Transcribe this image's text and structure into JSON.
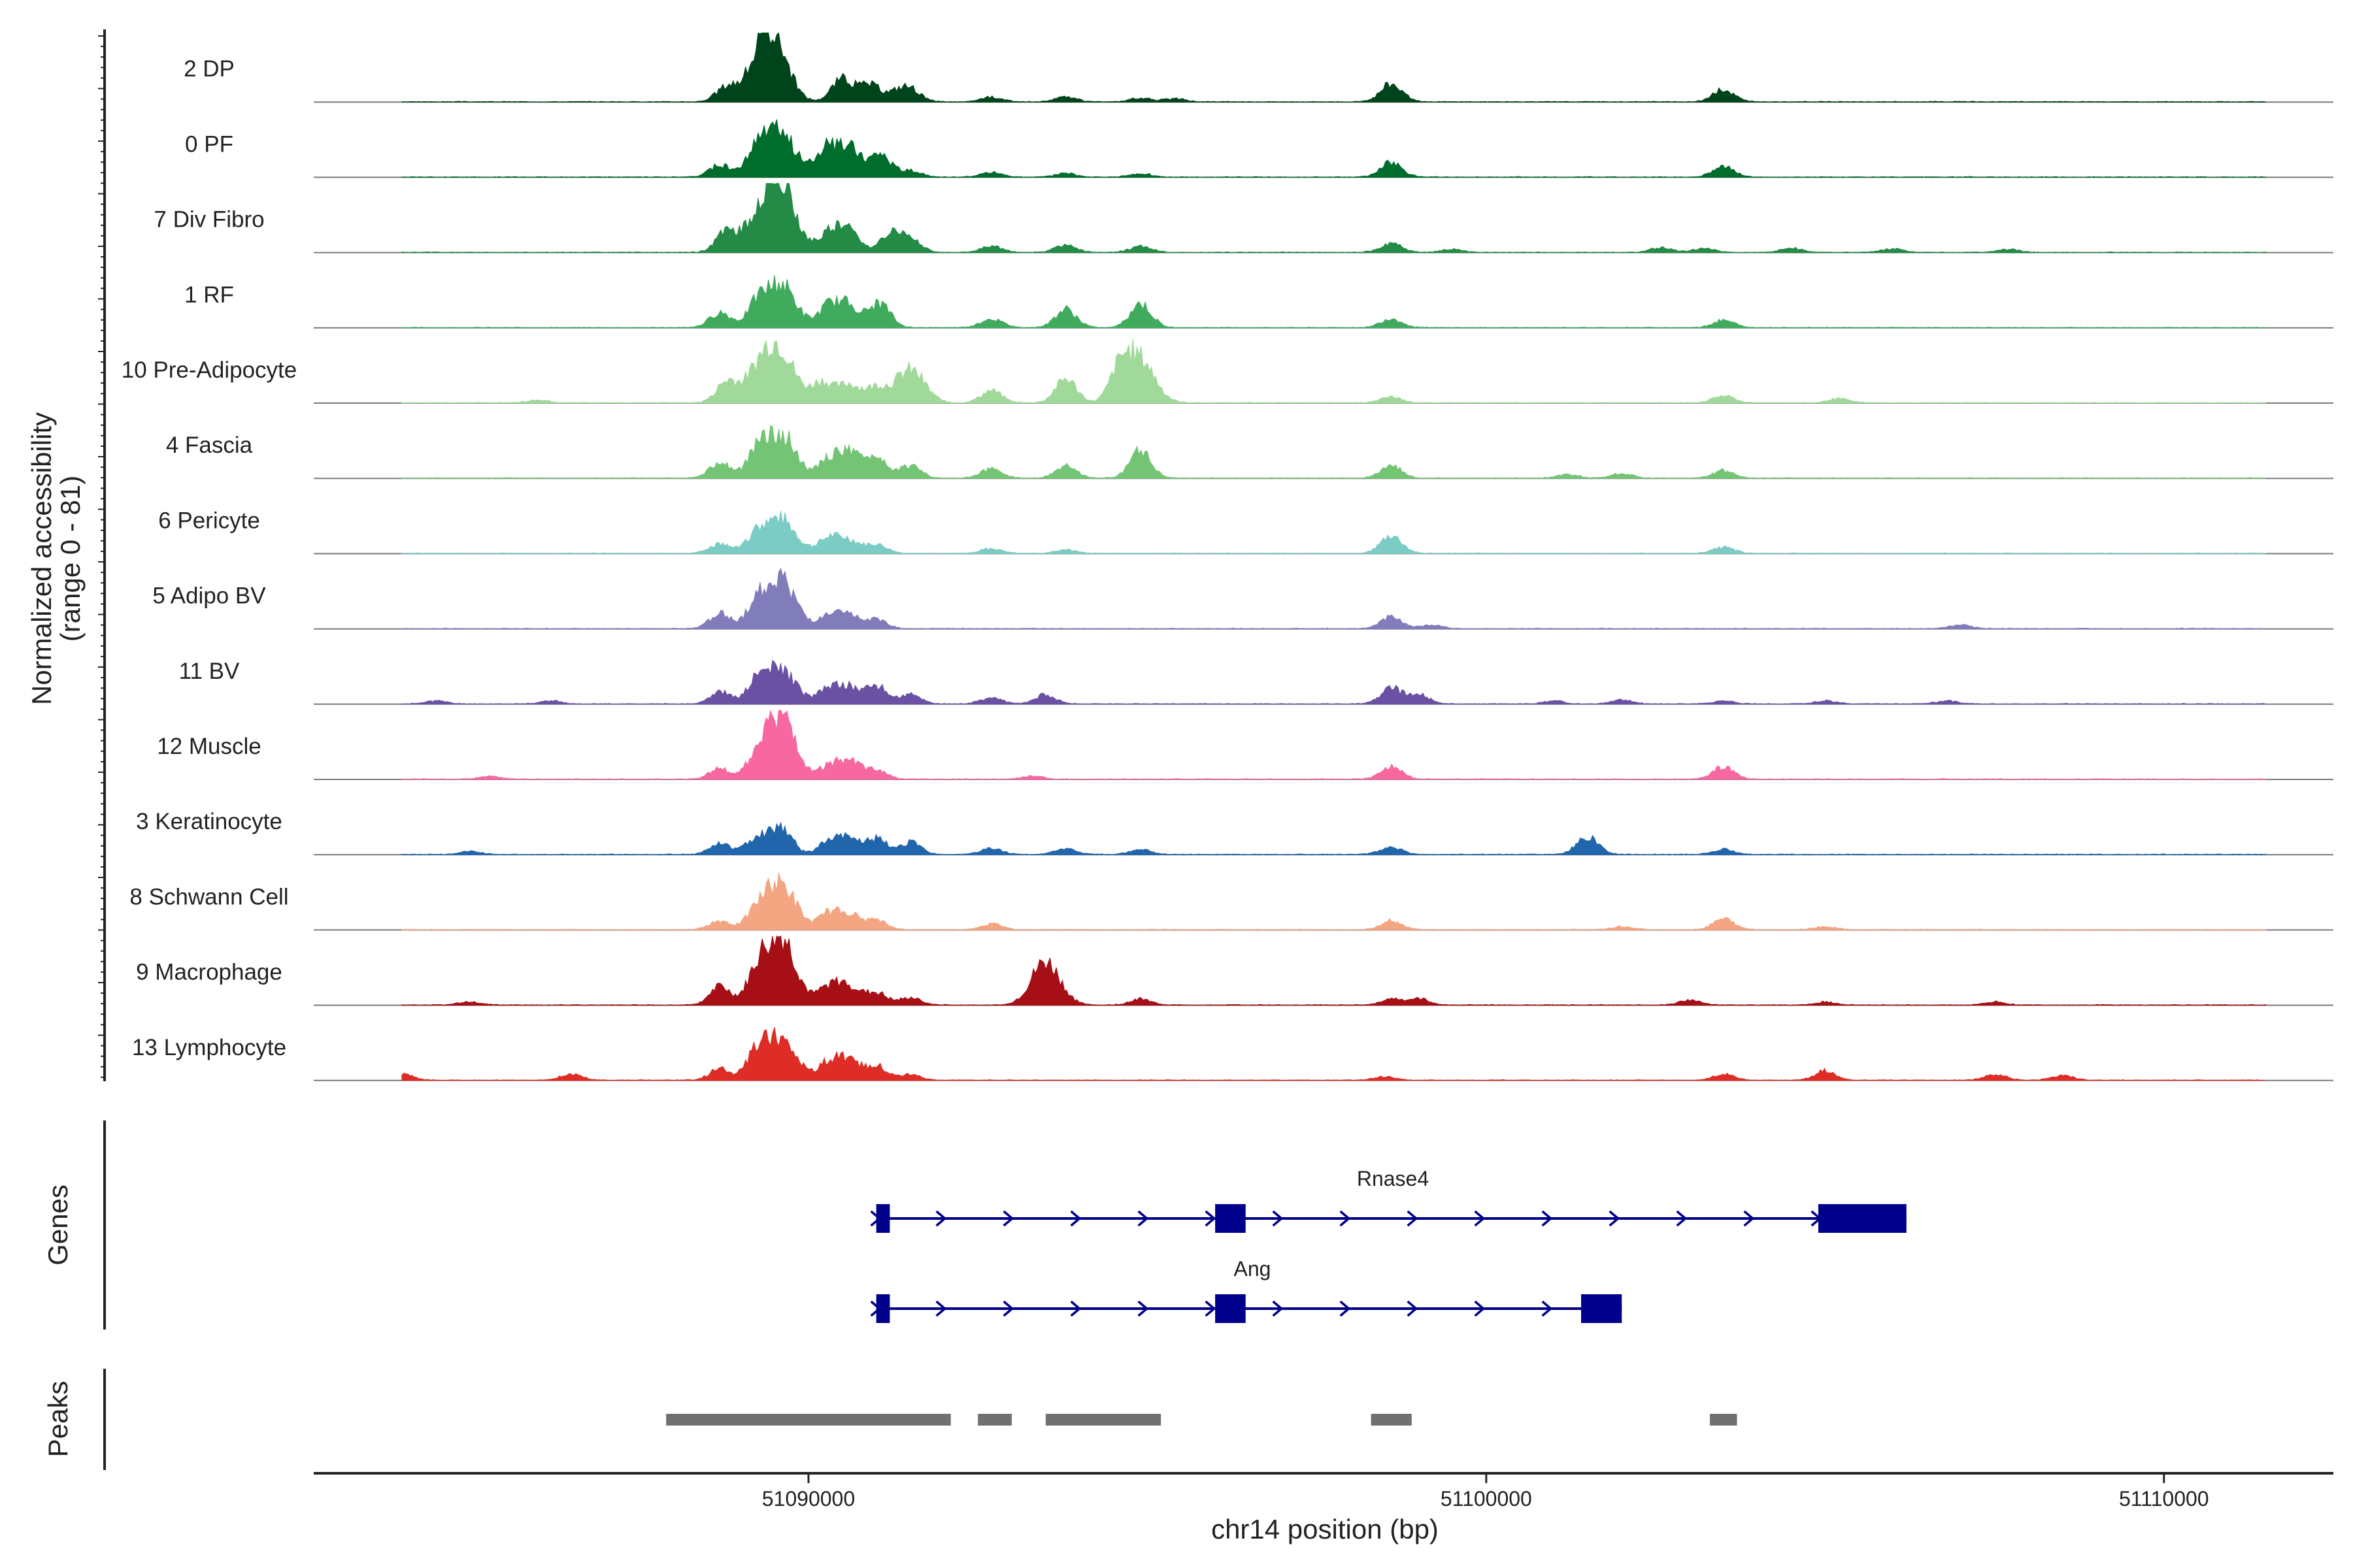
{
  "chart_data": {
    "type": "area",
    "title": "",
    "ylabel": "Normalized accessibility",
    "ylabel_range": "(range 0 - 81)",
    "ylim": [
      0,
      81
    ],
    "xlabel": "chr14 position (bp)",
    "chromosome": "chr14",
    "xlim": [
      51082700,
      51112500
    ],
    "x_ticks": [
      51090000,
      51100000,
      51110000
    ],
    "x_tick_labels": [
      "51090000",
      "51100000",
      "51110000"
    ],
    "panels": [
      "Genes",
      "Peaks"
    ],
    "series": [
      {
        "name": "2 DP",
        "color": "#00441b",
        "peaks": [
          [
            51089500,
            0.85
          ],
          [
            51089300,
            0.55
          ],
          [
            51088800,
            0.25
          ],
          [
            51090500,
            0.38
          ],
          [
            51090900,
            0.28
          ],
          [
            51091500,
            0.2
          ],
          [
            51092700,
            0.08
          ],
          [
            51093800,
            0.08
          ],
          [
            51094900,
            0.06
          ],
          [
            51095400,
            0.05
          ],
          [
            51098600,
            0.3
          ],
          [
            51103500,
            0.2
          ],
          [
            51091300,
            0.12
          ]
        ]
      },
      {
        "name": "0 PF",
        "color": "#006d2c",
        "peaks": [
          [
            51089600,
            0.72
          ],
          [
            51089250,
            0.45
          ],
          [
            51088700,
            0.2
          ],
          [
            51090250,
            0.48
          ],
          [
            51090600,
            0.5
          ],
          [
            51091050,
            0.4
          ],
          [
            51091500,
            0.1
          ],
          [
            51092700,
            0.08
          ],
          [
            51093800,
            0.06
          ],
          [
            51094900,
            0.06
          ],
          [
            51098600,
            0.25
          ],
          [
            51103500,
            0.18
          ]
        ]
      },
      {
        "name": "7 Div Fibro",
        "color": "#238b45",
        "peaks": [
          [
            51089600,
            1.0
          ],
          [
            51089300,
            0.55
          ],
          [
            51088800,
            0.35
          ],
          [
            51090300,
            0.35
          ],
          [
            51090600,
            0.35
          ],
          [
            51091200,
            0.3
          ],
          [
            51091500,
            0.22
          ],
          [
            51092700,
            0.1
          ],
          [
            51093800,
            0.12
          ],
          [
            51094900,
            0.1
          ],
          [
            51098600,
            0.15
          ],
          [
            51099500,
            0.05
          ],
          [
            51102600,
            0.08
          ],
          [
            51103200,
            0.06
          ],
          [
            51104500,
            0.07
          ],
          [
            51106000,
            0.06
          ],
          [
            51107700,
            0.05
          ]
        ]
      },
      {
        "name": "1 RF",
        "color": "#41ab5d",
        "peaks": [
          [
            51089600,
            0.7
          ],
          [
            51089250,
            0.35
          ],
          [
            51088700,
            0.25
          ],
          [
            51090300,
            0.35
          ],
          [
            51090600,
            0.35
          ],
          [
            51091050,
            0.4
          ],
          [
            51092700,
            0.15
          ],
          [
            51093800,
            0.3
          ],
          [
            51094900,
            0.4
          ],
          [
            51098600,
            0.15
          ],
          [
            51103500,
            0.12
          ]
        ]
      },
      {
        "name": "10 Pre-Adipocyte",
        "color": "#a1d99b",
        "peaks": [
          [
            51089600,
            0.75
          ],
          [
            51089300,
            0.55
          ],
          [
            51088800,
            0.35
          ],
          [
            51090200,
            0.35
          ],
          [
            51090600,
            0.3
          ],
          [
            51091000,
            0.25
          ],
          [
            51091500,
            0.55
          ],
          [
            51092700,
            0.2
          ],
          [
            51093800,
            0.4
          ],
          [
            51094900,
            0.7
          ],
          [
            51094600,
            0.5
          ],
          [
            51083500,
            0.12
          ],
          [
            51086000,
            0.05
          ],
          [
            51098600,
            0.1
          ],
          [
            51103500,
            0.12
          ],
          [
            51105200,
            0.07
          ]
        ]
      },
      {
        "name": "4 Fascia",
        "color": "#74c476",
        "peaks": [
          [
            51089600,
            0.72
          ],
          [
            51089250,
            0.4
          ],
          [
            51088700,
            0.25
          ],
          [
            51090300,
            0.3
          ],
          [
            51090600,
            0.4
          ],
          [
            51091000,
            0.35
          ],
          [
            51091500,
            0.2
          ],
          [
            51092700,
            0.15
          ],
          [
            51093800,
            0.2
          ],
          [
            51094900,
            0.45
          ],
          [
            51098600,
            0.2
          ],
          [
            51103500,
            0.12
          ],
          [
            51102000,
            0.08
          ],
          [
            51101200,
            0.06
          ]
        ]
      },
      {
        "name": "6 Pericyte",
        "color": "#7bccc4",
        "peaks": [
          [
            51089600,
            0.55
          ],
          [
            51089250,
            0.3
          ],
          [
            51088700,
            0.15
          ],
          [
            51090300,
            0.25
          ],
          [
            51090600,
            0.2
          ],
          [
            51091000,
            0.15
          ],
          [
            51092700,
            0.08
          ],
          [
            51093800,
            0.06
          ],
          [
            51098600,
            0.3
          ],
          [
            51103500,
            0.1
          ]
        ]
      },
      {
        "name": "5 Adipo BV",
        "color": "#807dba",
        "peaks": [
          [
            51089600,
            0.8
          ],
          [
            51089250,
            0.4
          ],
          [
            51088700,
            0.25
          ],
          [
            51090300,
            0.2
          ],
          [
            51090600,
            0.2
          ],
          [
            51091000,
            0.15
          ],
          [
            51098600,
            0.2
          ],
          [
            51099200,
            0.06
          ],
          [
            51107000,
            0.06
          ]
        ]
      },
      {
        "name": "11 BV",
        "color": "#6a51a3",
        "peaks": [
          [
            51089600,
            0.55
          ],
          [
            51089250,
            0.35
          ],
          [
            51088700,
            0.2
          ],
          [
            51090300,
            0.25
          ],
          [
            51090600,
            0.25
          ],
          [
            51091000,
            0.3
          ],
          [
            51091500,
            0.15
          ],
          [
            51092700,
            0.1
          ],
          [
            51093500,
            0.15
          ],
          [
            51098600,
            0.25
          ],
          [
            51099000,
            0.15
          ],
          [
            51101000,
            0.05
          ],
          [
            51102000,
            0.06
          ],
          [
            51103500,
            0.05
          ],
          [
            51105000,
            0.05
          ],
          [
            51106800,
            0.05
          ],
          [
            51084500,
            0.05
          ],
          [
            51086200,
            0.05
          ]
        ]
      },
      {
        "name": "12 Muscle",
        "color": "#f768a1",
        "peaks": [
          [
            51089600,
            1.0
          ],
          [
            51089250,
            0.35
          ],
          [
            51088700,
            0.18
          ],
          [
            51090300,
            0.2
          ],
          [
            51090600,
            0.3
          ],
          [
            51091000,
            0.15
          ],
          [
            51098600,
            0.2
          ],
          [
            51103500,
            0.2
          ],
          [
            51083500,
            0.06
          ],
          [
            51085300,
            0.05
          ],
          [
            51093300,
            0.05
          ]
        ]
      },
      {
        "name": "3 Keratinocyte",
        "color": "#2166ac",
        "peaks": [
          [
            51089600,
            0.45
          ],
          [
            51089250,
            0.3
          ],
          [
            51088700,
            0.18
          ],
          [
            51090300,
            0.2
          ],
          [
            51090600,
            0.25
          ],
          [
            51091000,
            0.25
          ],
          [
            51091500,
            0.2
          ],
          [
            51092700,
            0.1
          ],
          [
            51093800,
            0.1
          ],
          [
            51094900,
            0.08
          ],
          [
            51098600,
            0.12
          ],
          [
            51101500,
            0.3
          ],
          [
            51103500,
            0.08
          ],
          [
            51085000,
            0.05
          ]
        ]
      },
      {
        "name": "8 Schwann Cell",
        "color": "#f4a582",
        "peaks": [
          [
            51089600,
            0.75
          ],
          [
            51089250,
            0.3
          ],
          [
            51088700,
            0.15
          ],
          [
            51090300,
            0.25
          ],
          [
            51090600,
            0.25
          ],
          [
            51091000,
            0.15
          ],
          [
            51092700,
            0.1
          ],
          [
            51098600,
            0.15
          ],
          [
            51103500,
            0.18
          ],
          [
            51102000,
            0.05
          ],
          [
            51105000,
            0.05
          ]
        ]
      },
      {
        "name": "9 Macrophage",
        "color": "#a50f15",
        "peaks": [
          [
            51089600,
            1.1
          ],
          [
            51089250,
            0.5
          ],
          [
            51088700,
            0.3
          ],
          [
            51090300,
            0.3
          ],
          [
            51090600,
            0.3
          ],
          [
            51091000,
            0.2
          ],
          [
            51091500,
            0.12
          ],
          [
            51093500,
            0.7
          ],
          [
            51094900,
            0.1
          ],
          [
            51098600,
            0.1
          ],
          [
            51099000,
            0.1
          ],
          [
            51103000,
            0.08
          ],
          [
            51105000,
            0.05
          ],
          [
            51107500,
            0.05
          ],
          [
            51083500,
            0.08
          ],
          [
            51085000,
            0.05
          ]
        ]
      },
      {
        "name": "13 Lymphocyte",
        "color": "#de2d26",
        "peaks": [
          [
            51089600,
            0.7
          ],
          [
            51089250,
            0.45
          ],
          [
            51088700,
            0.2
          ],
          [
            51090300,
            0.3
          ],
          [
            51090600,
            0.3
          ],
          [
            51091000,
            0.25
          ],
          [
            51091500,
            0.1
          ],
          [
            51084000,
            0.1
          ],
          [
            51086500,
            0.1
          ],
          [
            51098500,
            0.06
          ],
          [
            51103500,
            0.1
          ],
          [
            51105000,
            0.15
          ],
          [
            51107500,
            0.1
          ],
          [
            51108500,
            0.08
          ]
        ]
      }
    ],
    "genes": [
      {
        "name": "Rnase4",
        "strand": "+",
        "start": 51091000,
        "end": 51106200,
        "exons": [
          [
            51091000,
            51091200
          ],
          [
            51096000,
            51096450
          ],
          [
            51104900,
            51106200
          ]
        ]
      },
      {
        "name": "Ang",
        "strand": "+",
        "start": 51091000,
        "end": 51102000,
        "exons": [
          [
            51091000,
            51091200
          ],
          [
            51096000,
            51096450
          ],
          [
            51101400,
            51102000
          ]
        ]
      }
    ],
    "peaks": [
      [
        51087900,
        51092100
      ],
      [
        51092500,
        51093000
      ],
      [
        51093500,
        51095200
      ],
      [
        51098300,
        51098900
      ],
      [
        51103300,
        51103700
      ]
    ]
  }
}
